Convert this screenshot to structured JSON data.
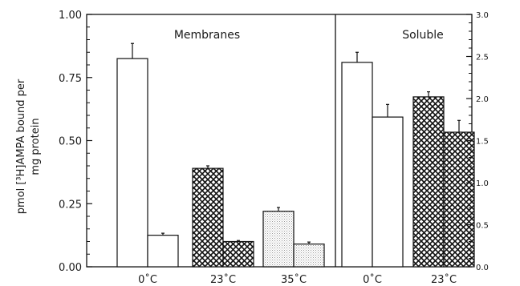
{
  "chart_data": {
    "type": "bar",
    "ylabel_lines": [
      "pmol [³H]AMPA bound per",
      "mg protein"
    ],
    "left_axis": {
      "range": [
        0,
        1.0
      ],
      "ticks": [
        0,
        0.25,
        0.5,
        0.75,
        1.0
      ],
      "tick_labels": [
        "0.00",
        "0.25",
        "0.50",
        "0.75",
        "1.00"
      ]
    },
    "right_axis": {
      "range": [
        0,
        30
      ],
      "ticks": [
        0,
        5,
        10,
        15,
        20,
        25,
        30
      ],
      "tick_labels": [
        "0.0",
        "0.5",
        "1.0",
        "1.5",
        "2.0",
        "2.5",
        "3.0"
      ]
    },
    "panels": [
      {
        "title": "Membranes",
        "axis": "left",
        "groups": [
          {
            "label": "0˚C",
            "pattern": "white",
            "values": [
              0.825,
              0.125
            ],
            "errors": [
              0.06,
              0.008
            ]
          },
          {
            "label": "23˚C",
            "pattern": "crosshatch",
            "values": [
              0.39,
              0.1
            ],
            "errors": [
              0.01,
              0.004
            ]
          },
          {
            "label": "35˚C",
            "pattern": "dotted",
            "values": [
              0.22,
              0.09
            ],
            "errors": [
              0.015,
              0.008
            ]
          }
        ]
      },
      {
        "title": "Soluble",
        "axis": "right",
        "groups": [
          {
            "label": "0˚C",
            "pattern": "white",
            "values": [
              24.3,
              17.8
            ],
            "errors": [
              1.2,
              1.5
            ]
          },
          {
            "label": "23˚C",
            "pattern": "crosshatch",
            "values": [
              20.2,
              16.0
            ],
            "errors": [
              0.6,
              1.4
            ]
          }
        ]
      }
    ]
  }
}
